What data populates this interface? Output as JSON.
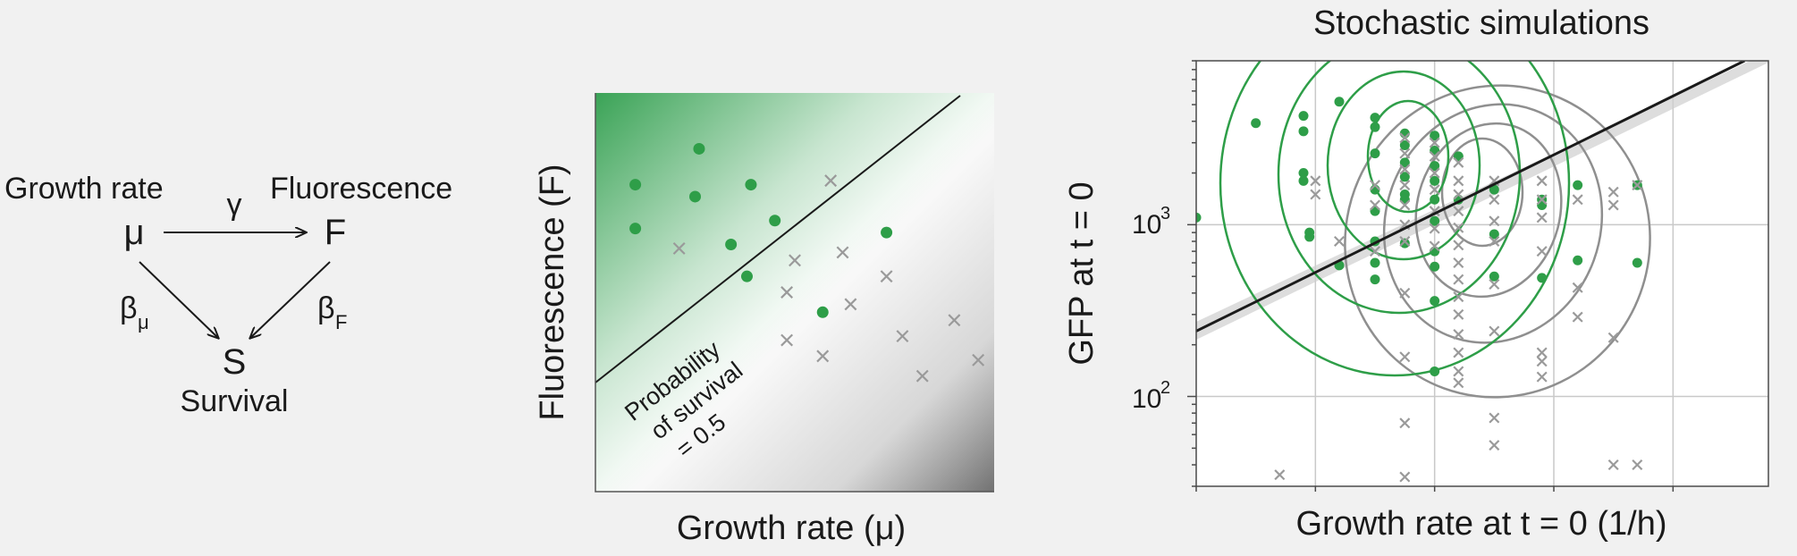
{
  "diagram": {
    "growth_label": "Growth rate",
    "fluor_label": "Fluorescence",
    "mu": "μ",
    "F": "F",
    "gamma": "γ",
    "beta": "β",
    "beta_mu_sub": "μ",
    "beta_f_sub": "F",
    "S": "S",
    "survival_label": "Survival"
  },
  "schematic": {
    "xlabel": "Growth rate (μ)",
    "ylabel": "Fluorescence (F)",
    "note_lines": [
      "Probability",
      "of survival",
      "= 0.5"
    ],
    "colors": {
      "survive": "#2e9e48",
      "dead": "#9a9a9a",
      "gradient_top": "#3aa356",
      "gradient_bottom": "#7a7a7a"
    }
  },
  "sim": {
    "title": "Stochastic simulations",
    "xlabel": "Growth rate at t = 0 (1/h)",
    "ylabel": "GFP at t = 0",
    "yticks": [
      {
        "base": "10",
        "exp": "2"
      },
      {
        "base": "10",
        "exp": "3"
      }
    ]
  },
  "chart_data": [
    {
      "type": "scatter",
      "title": "",
      "xlabel": "Growth rate (μ)",
      "ylabel": "Fluorescence (F)",
      "xlim": [
        0,
        1
      ],
      "ylim": [
        0,
        1
      ],
      "grid": false,
      "decision_line": {
        "label": "Probability of survival = 0.5",
        "x": [
          0,
          0.91
        ],
        "y": [
          0.28,
          1.0
        ]
      },
      "series": [
        {
          "name": "",
          "marker": "dot",
          "color": "#2e9e48",
          "x": [
            0.1,
            0.26,
            0.25,
            0.39,
            0.1,
            0.45,
            0.34,
            0.38,
            0.73,
            0.57
          ],
          "y": [
            0.77,
            0.86,
            0.74,
            0.77,
            0.66,
            0.68,
            0.62,
            0.54,
            0.65,
            0.45
          ]
        },
        {
          "name": "",
          "marker": "x",
          "color": "#9a9a9a",
          "x": [
            0.59,
            0.21,
            0.5,
            0.62,
            0.73,
            0.48,
            0.64,
            0.77,
            0.9,
            0.48,
            0.57,
            0.82,
            0.96
          ],
          "y": [
            0.78,
            0.61,
            0.58,
            0.6,
            0.54,
            0.5,
            0.47,
            0.39,
            0.43,
            0.38,
            0.34,
            0.29,
            0.33
          ]
        }
      ]
    },
    {
      "type": "scatter",
      "title": "Stochastic simulations",
      "xlabel": "Growth rate at t = 0 (1/h)",
      "ylabel": "GFP at t = 0",
      "yscale": "log",
      "xlim": [
        0,
        4.8
      ],
      "ylim": [
        30,
        9000
      ],
      "grid": true,
      "fit_line": {
        "x": [
          0,
          4.6
        ],
        "y": [
          240,
          9000
        ]
      },
      "series": [
        {
          "name": "",
          "marker": "dot",
          "color": "#2e9e48",
          "x": [
            0.0,
            0.5,
            0.9,
            0.9,
            0.9,
            0.9,
            0.95,
            0.95,
            1.2,
            1.2,
            1.5,
            1.5,
            1.5,
            1.5,
            1.5,
            1.5,
            1.5,
            1.5,
            1.75,
            1.75,
            1.75,
            1.75,
            1.75,
            1.75,
            1.75,
            2.0,
            2.0,
            2.0,
            2.0,
            2.0,
            2.0,
            2.0,
            2.0,
            2.0,
            2.0,
            2.2,
            2.2,
            2.5,
            2.5,
            2.5,
            2.9,
            2.9,
            2.9,
            3.2,
            3.2,
            3.7,
            3.7
          ],
          "y": [
            1100,
            3900,
            4300,
            3500,
            2000,
            1800,
            850,
            900,
            580,
            5200,
            4200,
            3700,
            2600,
            1600,
            1200,
            800,
            600,
            480,
            3400,
            2900,
            2300,
            1900,
            1500,
            1400,
            780,
            3300,
            2700,
            2200,
            1800,
            1400,
            1050,
            700,
            570,
            360,
            140,
            2500,
            1400,
            1600,
            880,
            500,
            1400,
            1300,
            490,
            1700,
            620,
            1700,
            600
          ]
        },
        {
          "name": "",
          "marker": "x",
          "color": "#9a9a9a",
          "x": [
            0.7,
            1.0,
            1.0,
            1.2,
            1.5,
            1.5,
            1.5,
            1.75,
            1.75,
            1.75,
            1.75,
            1.75,
            1.75,
            1.75,
            1.75,
            1.75,
            1.75,
            1.75,
            2.0,
            2.0,
            2.0,
            2.0,
            2.0,
            2.0,
            2.0,
            2.2,
            2.2,
            2.2,
            2.2,
            2.2,
            2.2,
            2.2,
            2.2,
            2.2,
            2.2,
            2.2,
            2.2,
            2.2,
            2.2,
            2.5,
            2.5,
            2.5,
            2.5,
            2.5,
            2.5,
            2.5,
            2.5,
            2.9,
            2.9,
            2.9,
            2.9,
            2.9,
            2.9,
            2.9,
            3.2,
            3.2,
            3.2,
            3.5,
            3.5,
            3.5,
            3.5,
            3.7,
            3.7
          ],
          "y": [
            35,
            1800,
            1500,
            800,
            1700,
            1300,
            700,
            3200,
            2600,
            2100,
            1700,
            1300,
            1000,
            800,
            400,
            170,
            70,
            34,
            3000,
            2500,
            2000,
            1600,
            1200,
            950,
            750,
            2300,
            1800,
            1500,
            1200,
            960,
            760,
            600,
            480,
            380,
            300,
            230,
            180,
            140,
            120,
            1800,
            1400,
            1050,
            800,
            450,
            240,
            75,
            52,
            1800,
            1400,
            1100,
            700,
            180,
            160,
            130,
            1400,
            430,
            290,
            1550,
            1300,
            220,
            40,
            1700,
            40
          ]
        }
      ]
    }
  ]
}
